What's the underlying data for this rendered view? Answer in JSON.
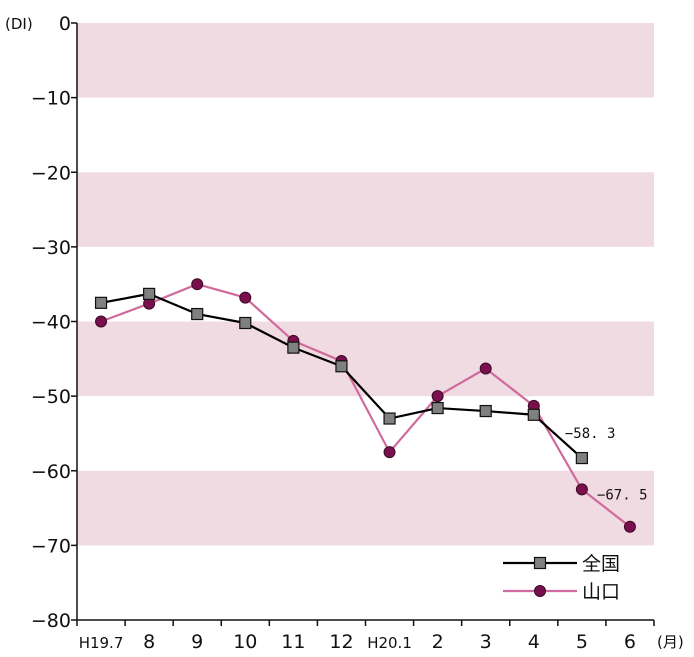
{
  "chart_data": {
    "type": "line",
    "y_unit_label": "(DI)",
    "x_unit_label": "(月)",
    "categories": [
      "H19.7",
      "8",
      "9",
      "10",
      "11",
      "12",
      "H20.1",
      "2",
      "3",
      "4",
      "5",
      "6"
    ],
    "ylim": [
      -80,
      0
    ],
    "yticks": [
      0,
      -10,
      -20,
      -30,
      -40,
      -50,
      -60,
      -70,
      -80
    ],
    "ytick_labels": [
      "0",
      "−10",
      "−20",
      "−30",
      "−40",
      "−50",
      "−60",
      "−70",
      "−80"
    ],
    "shaded_bands": [
      [
        -10,
        0
      ],
      [
        -30,
        -20
      ],
      [
        -50,
        -40
      ],
      [
        -70,
        -60
      ]
    ],
    "band_color": "#f1dbe2",
    "series": [
      {
        "name": "全国",
        "color": "#000000",
        "marker": "square",
        "marker_color": "#808080",
        "values": [
          -37.5,
          -36.3,
          -39.0,
          -40.2,
          -43.5,
          -46.0,
          -53.0,
          -51.6,
          -52.0,
          -52.5,
          -58.3,
          null
        ]
      },
      {
        "name": "山口",
        "color": "#d06a9c",
        "marker": "circle",
        "marker_color": "#7a0f4e",
        "values": [
          -40.0,
          -37.6,
          -35.0,
          -36.8,
          -42.6,
          -45.3,
          -57.5,
          -50.0,
          -46.3,
          -51.3,
          -62.5,
          -67.5
        ]
      }
    ],
    "annotations": [
      {
        "text": "−58. 3",
        "series": 0,
        "index": 10
      },
      {
        "text": "−67. 5",
        "series": 1,
        "index": 11
      }
    ],
    "legend_position": "bottom-right"
  }
}
